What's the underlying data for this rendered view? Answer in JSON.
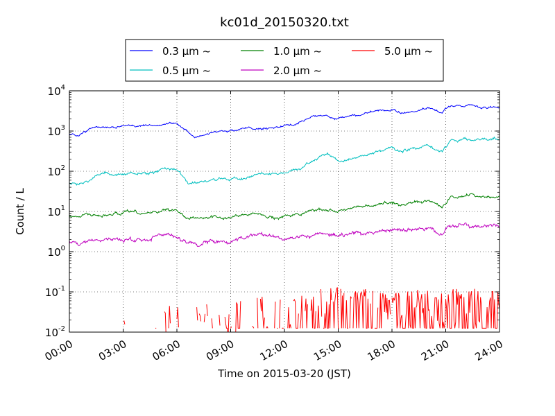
{
  "chart_data": {
    "type": "line",
    "title": "kc01d_20150320.txt",
    "xlabel": "Time on 2015-03-20 (JST)",
    "ylabel": "Count / L",
    "yscale": "log",
    "ylim": [
      0.01,
      10000
    ],
    "xlim": [
      "00:00",
      "24:00"
    ],
    "x_ticks": [
      "00:00",
      "03:00",
      "06:00",
      "09:00",
      "12:00",
      "15:00",
      "18:00",
      "21:00",
      "24:00"
    ],
    "y_ticks": [
      {
        "base": "10",
        "exp": "-2"
      },
      {
        "base": "10",
        "exp": "-1"
      },
      {
        "base": "10",
        "exp": "0"
      },
      {
        "base": "10",
        "exp": "1"
      },
      {
        "base": "10",
        "exp": "2"
      },
      {
        "base": "10",
        "exp": "3"
      },
      {
        "base": "10",
        "exp": "4"
      }
    ],
    "grid": true,
    "legend_position": "top-center",
    "series": [
      {
        "name": "0.3 μm ~",
        "color": "#0000ff",
        "noise": 0.025,
        "points": [
          [
            0,
            800
          ],
          [
            0.5,
            750
          ],
          [
            1,
            1000
          ],
          [
            1.5,
            1300
          ],
          [
            2,
            1250
          ],
          [
            2.5,
            1200
          ],
          [
            3,
            1400
          ],
          [
            3.5,
            1300
          ],
          [
            4,
            1350
          ],
          [
            4.5,
            1400
          ],
          [
            5,
            1450
          ],
          [
            5.5,
            1650
          ],
          [
            6,
            1500
          ],
          [
            6.3,
            1200
          ],
          [
            6.6,
            950
          ],
          [
            6.8,
            750
          ],
          [
            7,
            700
          ],
          [
            7.5,
            800
          ],
          [
            8,
            880
          ],
          [
            8.5,
            950
          ],
          [
            9,
            1000
          ],
          [
            9.5,
            1100
          ],
          [
            10,
            1200
          ],
          [
            10.5,
            1150
          ],
          [
            11,
            1200
          ],
          [
            11.5,
            1250
          ],
          [
            12,
            1350
          ],
          [
            12.5,
            1400
          ],
          [
            13,
            1800
          ],
          [
            13.5,
            2200
          ],
          [
            14,
            2400
          ],
          [
            14.5,
            2200
          ],
          [
            15,
            2000
          ],
          [
            15.5,
            2200
          ],
          [
            16,
            2400
          ],
          [
            16.5,
            2700
          ],
          [
            17,
            3000
          ],
          [
            17.5,
            3100
          ],
          [
            18,
            3500
          ],
          [
            18.2,
            3200
          ],
          [
            18.5,
            2700
          ],
          [
            19,
            2900
          ],
          [
            19.5,
            3200
          ],
          [
            20,
            3700
          ],
          [
            20.5,
            3100
          ],
          [
            20.8,
            2700
          ],
          [
            21,
            3500
          ],
          [
            21.3,
            4300
          ],
          [
            22,
            4300
          ],
          [
            22.5,
            4400
          ],
          [
            23,
            3900
          ],
          [
            24,
            3800
          ]
        ]
      },
      {
        "name": "0.5 μm ~",
        "color": "#00bfbf",
        "noise": 0.035,
        "points": [
          [
            0,
            50
          ],
          [
            0.5,
            48
          ],
          [
            1,
            60
          ],
          [
            1.5,
            80
          ],
          [
            2,
            90
          ],
          [
            2.5,
            85
          ],
          [
            3,
            80
          ],
          [
            3.5,
            90
          ],
          [
            4,
            85
          ],
          [
            4.5,
            95
          ],
          [
            5,
            105
          ],
          [
            5.5,
            115
          ],
          [
            6,
            110
          ],
          [
            6.3,
            80
          ],
          [
            6.6,
            55
          ],
          [
            6.9,
            45
          ],
          [
            7.2,
            48
          ],
          [
            7.5,
            55
          ],
          [
            8,
            60
          ],
          [
            8.5,
            65
          ],
          [
            9,
            62
          ],
          [
            9.5,
            65
          ],
          [
            10,
            75
          ],
          [
            10.5,
            85
          ],
          [
            11,
            88
          ],
          [
            11.5,
            95
          ],
          [
            12,
            90
          ],
          [
            12.5,
            100
          ],
          [
            13,
            120
          ],
          [
            13.5,
            170
          ],
          [
            14,
            250
          ],
          [
            14.5,
            260
          ],
          [
            15,
            190
          ],
          [
            15.5,
            180
          ],
          [
            16,
            220
          ],
          [
            16.5,
            250
          ],
          [
            17,
            300
          ],
          [
            17.5,
            320
          ],
          [
            18,
            400
          ],
          [
            18.2,
            320
          ],
          [
            18.5,
            300
          ],
          [
            19,
            350
          ],
          [
            19.5,
            380
          ],
          [
            20,
            440
          ],
          [
            20.5,
            350
          ],
          [
            20.8,
            320
          ],
          [
            21,
            400
          ],
          [
            21.3,
            600
          ],
          [
            22,
            620
          ],
          [
            22.5,
            650
          ],
          [
            23,
            640
          ],
          [
            24,
            610
          ]
        ]
      },
      {
        "name": "1.0 μm ~",
        "color": "#008000",
        "noise": 0.035,
        "points": [
          [
            0,
            8
          ],
          [
            0.5,
            7.5
          ],
          [
            1,
            8.5
          ],
          [
            1.5,
            8
          ],
          [
            2,
            7.5
          ],
          [
            2.5,
            8.5
          ],
          [
            3,
            9
          ],
          [
            3.5,
            9.5
          ],
          [
            4,
            9
          ],
          [
            4.5,
            10
          ],
          [
            5,
            10.5
          ],
          [
            5.5,
            11
          ],
          [
            6,
            10.5
          ],
          [
            6.3,
            8.5
          ],
          [
            6.6,
            7
          ],
          [
            7,
            6.5
          ],
          [
            7.5,
            7
          ],
          [
            8,
            7.5
          ],
          [
            8.5,
            7
          ],
          [
            9,
            7.5
          ],
          [
            9.5,
            8
          ],
          [
            10,
            9
          ],
          [
            10.5,
            8.5
          ],
          [
            11,
            8
          ],
          [
            11.5,
            7
          ],
          [
            12,
            7.5
          ],
          [
            12.5,
            8
          ],
          [
            13,
            9
          ],
          [
            13.5,
            11
          ],
          [
            14,
            12
          ],
          [
            14.5,
            11
          ],
          [
            15,
            10
          ],
          [
            15.5,
            11
          ],
          [
            16,
            13
          ],
          [
            16.5,
            14
          ],
          [
            17,
            15
          ],
          [
            17.5,
            16
          ],
          [
            18,
            17
          ],
          [
            18.5,
            15
          ],
          [
            19,
            15.5
          ],
          [
            19.5,
            16
          ],
          [
            20,
            18
          ],
          [
            20.5,
            15
          ],
          [
            20.8,
            13
          ],
          [
            21,
            16
          ],
          [
            21.3,
            23
          ],
          [
            22,
            25
          ],
          [
            22.5,
            25
          ],
          [
            23,
            24
          ],
          [
            24,
            24
          ]
        ]
      },
      {
        "name": "2.0 μm ~",
        "color": "#bf00bf",
        "noise": 0.05,
        "points": [
          [
            0,
            1.8
          ],
          [
            0.5,
            1.7
          ],
          [
            1,
            1.8
          ],
          [
            1.5,
            1.9
          ],
          [
            2,
            1.9
          ],
          [
            2.5,
            2
          ],
          [
            3,
            2
          ],
          [
            3.5,
            2
          ],
          [
            4,
            2.1
          ],
          [
            4.5,
            2.2
          ],
          [
            5,
            2.3
          ],
          [
            5.5,
            2.4
          ],
          [
            6,
            2.2
          ],
          [
            6.5,
            1.8
          ],
          [
            6.8,
            1.5
          ],
          [
            7,
            1.4
          ],
          [
            7.5,
            1.6
          ],
          [
            8,
            1.8
          ],
          [
            8.5,
            1.9
          ],
          [
            9,
            1.8
          ],
          [
            9.5,
            2
          ],
          [
            10,
            2.4
          ],
          [
            10.5,
            2.6
          ],
          [
            11,
            2.7
          ],
          [
            11.5,
            2.5
          ],
          [
            12,
            2.2
          ],
          [
            12.5,
            2.3
          ],
          [
            13,
            2.4
          ],
          [
            13.5,
            2.5
          ],
          [
            14,
            2.7
          ],
          [
            14.5,
            2.6
          ],
          [
            15,
            2.5
          ],
          [
            15.5,
            2.7
          ],
          [
            16,
            2.8
          ],
          [
            16.5,
            3
          ],
          [
            17,
            3.2
          ],
          [
            17.5,
            3.4
          ],
          [
            18,
            3.8
          ],
          [
            18.5,
            3.3
          ],
          [
            19,
            3.4
          ],
          [
            19.5,
            3.5
          ],
          [
            20,
            3.6
          ],
          [
            20.5,
            3.1
          ],
          [
            20.8,
            3
          ],
          [
            21,
            3.6
          ],
          [
            21.3,
            4.3
          ],
          [
            22,
            4.5
          ],
          [
            22.5,
            4.4
          ],
          [
            23,
            4.3
          ],
          [
            24,
            4.2
          ]
        ]
      },
      {
        "name": "5.0 μm ~",
        "color": "#ff0000",
        "noise": 0,
        "spiky": true,
        "points": [
          [
            0,
            0.012
          ],
          [
            6,
            0.016
          ],
          [
            9,
            0.02
          ],
          [
            12,
            0.03
          ],
          [
            15,
            0.045
          ],
          [
            18,
            0.035
          ],
          [
            21,
            0.04
          ],
          [
            24,
            0.04
          ]
        ]
      }
    ]
  }
}
